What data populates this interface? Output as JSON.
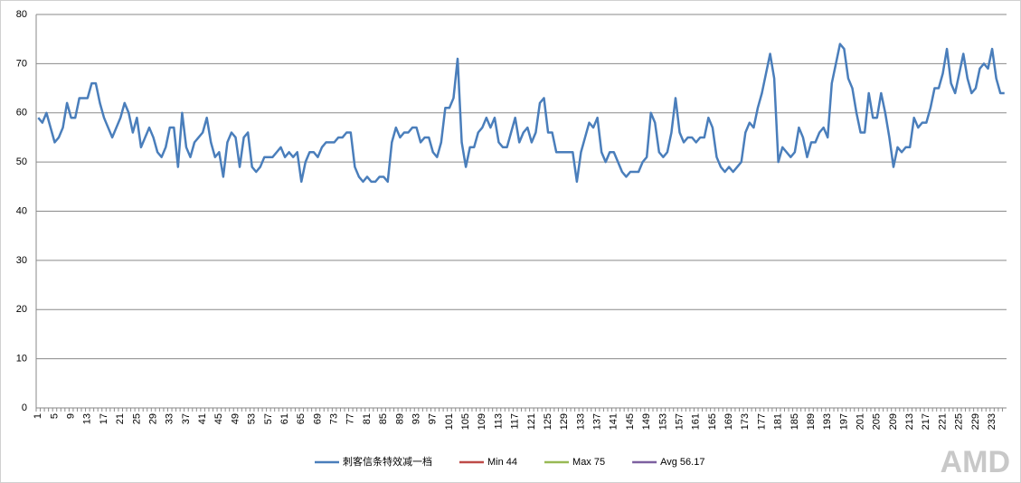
{
  "chart_data": {
    "type": "line",
    "categories": [
      1,
      null,
      null,
      null,
      5,
      null,
      null,
      null,
      9,
      null,
      null,
      null,
      13,
      null,
      null,
      null,
      17,
      null,
      null,
      null,
      21,
      null,
      null,
      null,
      25,
      null,
      null,
      null,
      29,
      null,
      null,
      null,
      33,
      null,
      null,
      null,
      37,
      null,
      null,
      null,
      41,
      null,
      null,
      null,
      45,
      null,
      null,
      null,
      49,
      null,
      null,
      null,
      53,
      null,
      null,
      null,
      57,
      null,
      null,
      null,
      61,
      null,
      null,
      null,
      65,
      null,
      null,
      null,
      69,
      null,
      null,
      null,
      73,
      null,
      null,
      null,
      77,
      null,
      null,
      null,
      81,
      null,
      null,
      null,
      85,
      null,
      null,
      null,
      89,
      null,
      null,
      null,
      93,
      null,
      null,
      null,
      97,
      null,
      null,
      null,
      101,
      null,
      null,
      null,
      105,
      null,
      null,
      null,
      109,
      null,
      null,
      null,
      113,
      null,
      null,
      null,
      117,
      null,
      null,
      null,
      121,
      null,
      null,
      null,
      125,
      null,
      null,
      null,
      129,
      null,
      null,
      null,
      133,
      null,
      null,
      null,
      137,
      null,
      null,
      null,
      141,
      null,
      null,
      null,
      145,
      null,
      null,
      null,
      149,
      null,
      null,
      null,
      153,
      null,
      null,
      null,
      157,
      null,
      null,
      null,
      161,
      null,
      null,
      null,
      165,
      null,
      null,
      null,
      169,
      null,
      null,
      null,
      173,
      null,
      null,
      null,
      177,
      null,
      null,
      null,
      181,
      null,
      null,
      null,
      185,
      null,
      null,
      null,
      189,
      null,
      null,
      null,
      193,
      null,
      null,
      null,
      197,
      null,
      null,
      null,
      201,
      null,
      null,
      null,
      205,
      null,
      null,
      null,
      209,
      null,
      null,
      null,
      213,
      null,
      null,
      null,
      217,
      null,
      null,
      null,
      221,
      null,
      null,
      null,
      225,
      null,
      null,
      null,
      229,
      null,
      null,
      null,
      233,
      null,
      null,
      null
    ],
    "series": [
      {
        "name": "刺客信条特效减一档",
        "color": "#4a7ebb",
        "values": [
          59,
          58,
          60,
          57,
          54,
          55,
          57,
          62,
          59,
          59,
          63,
          63,
          63,
          66,
          66,
          62,
          59,
          57,
          55,
          57,
          59,
          62,
          60,
          56,
          59,
          53,
          55,
          57,
          55,
          52,
          51,
          53,
          57,
          57,
          49,
          60,
          53,
          51,
          54,
          55,
          56,
          59,
          54,
          51,
          52,
          47,
          54,
          56,
          55,
          49,
          55,
          56,
          49,
          48,
          49,
          51,
          51,
          51,
          52,
          53,
          51,
          52,
          51,
          52,
          46,
          50,
          52,
          52,
          51,
          53,
          54,
          54,
          54,
          55,
          55,
          56,
          56,
          49,
          47,
          46,
          47,
          46,
          46,
          47,
          47,
          46,
          54,
          57,
          55,
          56,
          56,
          57,
          57,
          54,
          55,
          55,
          52,
          51,
          54,
          61,
          61,
          63,
          71,
          54,
          49,
          53,
          53,
          56,
          57,
          59,
          57,
          59,
          54,
          53,
          53,
          56,
          59,
          54,
          56,
          57,
          54,
          56,
          62,
          63,
          56,
          56,
          52,
          52,
          52,
          52,
          52,
          46,
          52,
          55,
          58,
          57,
          59,
          52,
          50,
          52,
          52,
          50,
          48,
          47,
          48,
          48,
          48,
          50,
          51,
          60,
          58,
          52,
          51,
          52,
          56,
          63,
          56,
          54,
          55,
          55,
          54,
          55,
          55,
          59,
          57,
          51,
          49,
          48,
          49,
          48,
          49,
          50,
          56,
          58,
          57,
          61,
          64,
          68,
          72,
          67,
          50,
          53,
          52,
          51,
          52,
          57,
          55,
          51,
          54,
          54,
          56,
          57,
          55,
          66,
          70,
          74,
          73,
          67,
          65,
          60,
          56,
          56,
          64,
          59,
          59,
          64,
          60,
          55,
          49,
          53,
          52,
          53,
          53,
          59,
          57,
          58,
          58,
          61,
          65,
          65,
          68,
          73,
          66,
          64,
          68,
          72,
          67,
          64,
          65,
          69,
          70,
          69,
          73,
          67,
          64,
          64
        ]
      },
      {
        "name": "Min 44",
        "color": "#be4b48"
      },
      {
        "name": "Max 75",
        "color": "#98b954"
      },
      {
        "name": "Avg 56.17",
        "color": "#7d60a0"
      }
    ],
    "ylim": [
      0,
      80
    ],
    "yticks": [
      0,
      10,
      20,
      30,
      40,
      50,
      60,
      70,
      80
    ],
    "grid": true,
    "legend": "bottom",
    "watermark": "AMD"
  }
}
